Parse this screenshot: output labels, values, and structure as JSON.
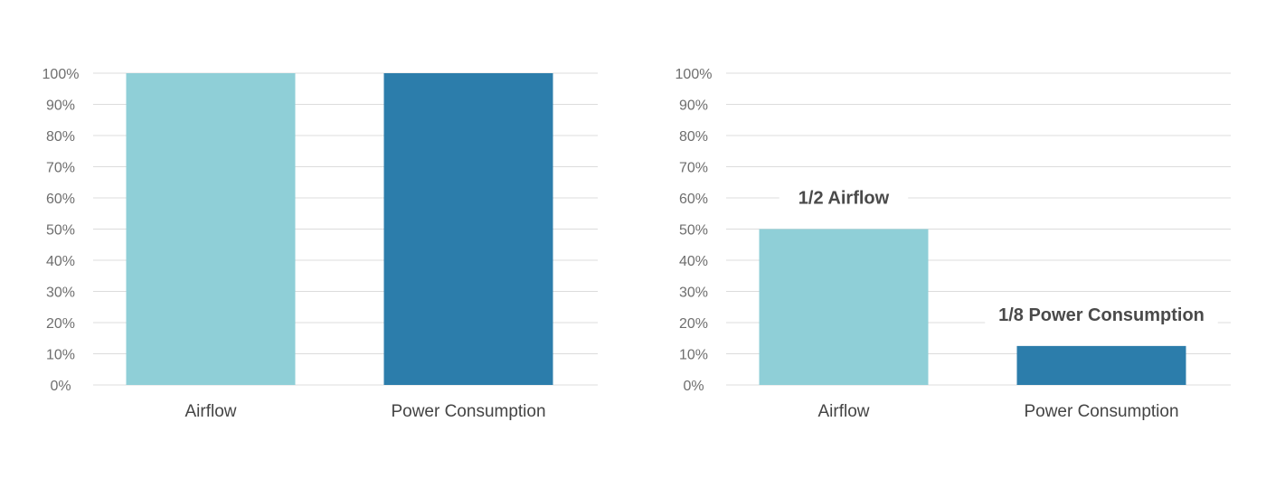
{
  "chart_data": [
    {
      "type": "bar",
      "categories": [
        "Airflow",
        "Power Consumption"
      ],
      "values": [
        100,
        100
      ],
      "ylim": [
        0,
        100
      ],
      "yticks": [
        0,
        10,
        20,
        30,
        40,
        50,
        60,
        70,
        80,
        90,
        100
      ],
      "ytick_suffix": "%",
      "grid": true,
      "colors": [
        "#8fcfd7",
        "#2c7dab"
      ],
      "annotations": []
    },
    {
      "type": "bar",
      "categories": [
        "Airflow",
        "Power Consumption"
      ],
      "values": [
        50,
        12.5
      ],
      "ylim": [
        0,
        100
      ],
      "yticks": [
        0,
        10,
        20,
        30,
        40,
        50,
        60,
        70,
        80,
        90,
        100
      ],
      "ytick_suffix": "%",
      "grid": true,
      "colors": [
        "#8fcfd7",
        "#2c7dab"
      ],
      "annotations": [
        "1/2 Airflow",
        "1/8 Power Consumption"
      ]
    }
  ]
}
